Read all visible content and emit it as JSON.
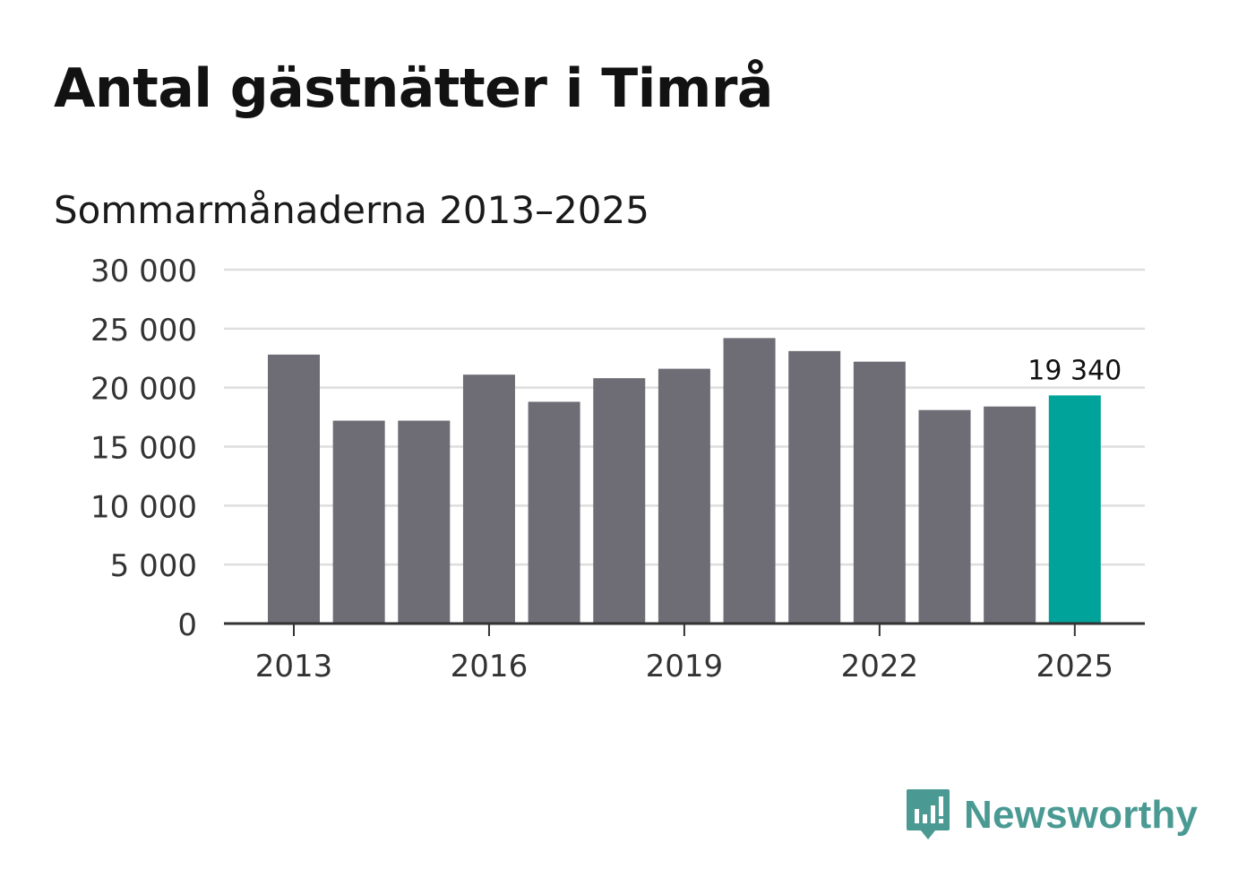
{
  "chart_data": {
    "type": "bar",
    "title": "Antal gästnätter i Timrå",
    "subtitle": "Sommarmånaderna 2013–2025",
    "xlabel": "",
    "ylabel": "",
    "ylim": [
      0,
      30000
    ],
    "grid": true,
    "categories": [
      "2013",
      "2014",
      "2015",
      "2016",
      "2017",
      "2018",
      "2019",
      "2020",
      "2021",
      "2022",
      "2023",
      "2024",
      "2025"
    ],
    "values": [
      22800,
      17200,
      17200,
      21100,
      18800,
      20800,
      21600,
      24200,
      23100,
      22200,
      18100,
      18400,
      19340
    ],
    "y_ticks": [
      {
        "value": 0,
        "label": "0"
      },
      {
        "value": 5000,
        "label": "5 000"
      },
      {
        "value": 10000,
        "label": "10 000"
      },
      {
        "value": 15000,
        "label": "15 000"
      },
      {
        "value": 20000,
        "label": "20 000"
      },
      {
        "value": 25000,
        "label": "25 000"
      },
      {
        "value": 30000,
        "label": "30 000"
      }
    ],
    "x_tick_labels": [
      "2013",
      "2016",
      "2019",
      "2022",
      "2025"
    ],
    "data_labels": [
      {
        "category": "2025",
        "label": "19 340"
      }
    ],
    "highlight_category": "2025",
    "colors": {
      "bar": "#6e6d75",
      "highlight": "#00a399",
      "grid": "#dedede",
      "axis": "#333333"
    }
  },
  "branding": {
    "name": "Newsworthy",
    "icon": "newsworthy-logo-icon",
    "color": "#4a9a93"
  }
}
